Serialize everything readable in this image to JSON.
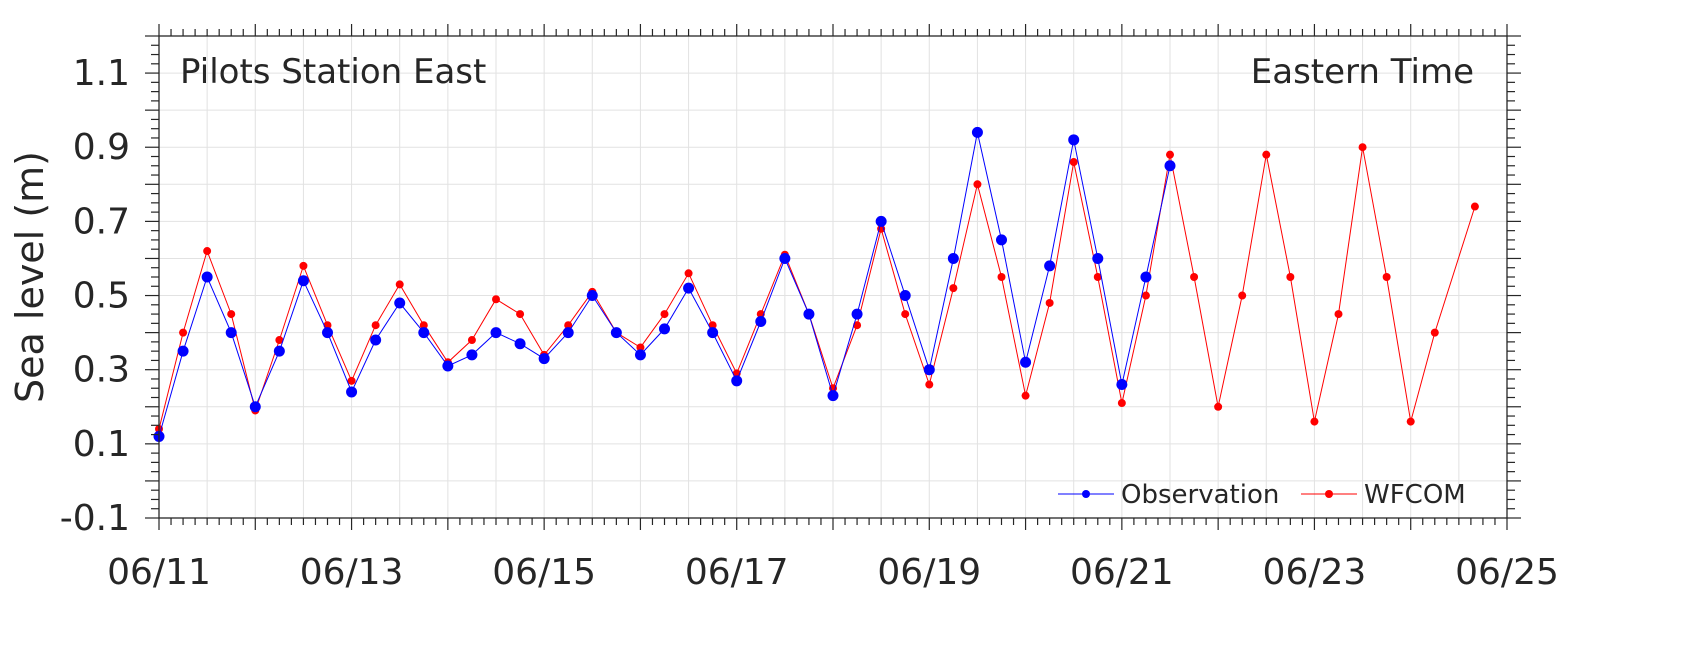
{
  "chart_data": {
    "type": "line",
    "title_left": "Pilots Station East",
    "title_right": "Eastern Time",
    "xlabel": "",
    "ylabel": "Sea level (m)",
    "x_unit": "days (June)",
    "xlim": [
      "06/11",
      "06/25"
    ],
    "ylim": [
      -0.1,
      1.2
    ],
    "x_ticks": [
      "06/11",
      "06/13",
      "06/15",
      "06/17",
      "06/19",
      "06/21",
      "06/23",
      "06/25"
    ],
    "y_ticks": [
      "-0.1",
      "0.1",
      "0.3",
      "0.5",
      "0.7",
      "0.9",
      "1.1"
    ],
    "grid": true,
    "legend_position": "bottom-right",
    "series": [
      {
        "name": "Observation",
        "color": "#0000ff",
        "marker": "circle",
        "x": [
          "06/11 00:00",
          "06/11 06:00",
          "06/11 12:00",
          "06/11 18:00",
          "06/12 00:00",
          "06/12 06:00",
          "06/12 12:00",
          "06/12 18:00",
          "06/13 00:00",
          "06/13 06:00",
          "06/13 12:00",
          "06/13 18:00",
          "06/14 00:00",
          "06/14 06:00",
          "06/14 12:00",
          "06/14 18:00",
          "06/15 00:00",
          "06/15 06:00",
          "06/15 12:00",
          "06/15 18:00",
          "06/16 00:00",
          "06/16 06:00",
          "06/16 12:00",
          "06/16 18:00",
          "06/17 00:00",
          "06/17 06:00",
          "06/17 12:00",
          "06/17 18:00",
          "06/18 00:00",
          "06/18 06:00",
          "06/18 12:00",
          "06/18 18:00",
          "06/19 00:00",
          "06/19 06:00",
          "06/19 12:00",
          "06/19 18:00",
          "06/20 00:00",
          "06/20 06:00",
          "06/20 12:00",
          "06/20 18:00",
          "06/21 00:00",
          "06/21 06:00",
          "06/21 12:00"
        ],
        "y": [
          0.12,
          0.35,
          0.55,
          0.4,
          0.2,
          0.35,
          0.54,
          0.4,
          0.24,
          0.38,
          0.48,
          0.4,
          0.31,
          0.34,
          0.4,
          0.37,
          0.33,
          0.4,
          0.5,
          0.4,
          0.34,
          0.41,
          0.52,
          0.4,
          0.27,
          0.43,
          0.6,
          0.45,
          0.23,
          0.45,
          0.7,
          0.5,
          0.3,
          0.6,
          0.94,
          0.65,
          0.32,
          0.58,
          0.92,
          0.6,
          0.26,
          0.55,
          0.85
        ]
      },
      {
        "name": "WFCOM",
        "color": "#ff0000",
        "marker": "circle",
        "x": [
          "06/11 00:00",
          "06/11 06:00",
          "06/11 12:00",
          "06/11 18:00",
          "06/12 00:00",
          "06/12 06:00",
          "06/12 12:00",
          "06/12 18:00",
          "06/13 00:00",
          "06/13 06:00",
          "06/13 12:00",
          "06/13 18:00",
          "06/14 00:00",
          "06/14 06:00",
          "06/14 12:00",
          "06/14 18:00",
          "06/15 00:00",
          "06/15 06:00",
          "06/15 12:00",
          "06/15 18:00",
          "06/16 00:00",
          "06/16 06:00",
          "06/16 12:00",
          "06/16 18:00",
          "06/17 00:00",
          "06/17 06:00",
          "06/17 12:00",
          "06/17 18:00",
          "06/18 00:00",
          "06/18 06:00",
          "06/18 12:00",
          "06/18 18:00",
          "06/19 00:00",
          "06/19 06:00",
          "06/19 12:00",
          "06/19 18:00",
          "06/20 00:00",
          "06/20 06:00",
          "06/20 12:00",
          "06/20 18:00",
          "06/21 00:00",
          "06/21 06:00",
          "06/21 12:00",
          "06/21 18:00",
          "06/22 00:00",
          "06/22 06:00",
          "06/22 12:00",
          "06/22 18:00",
          "06/23 00:00",
          "06/23 06:00",
          "06/23 12:00",
          "06/23 18:00",
          "06/24 00:00",
          "06/24 06:00",
          "06/24 16:00"
        ],
        "y": [
          0.14,
          0.4,
          0.62,
          0.45,
          0.19,
          0.38,
          0.58,
          0.42,
          0.27,
          0.42,
          0.53,
          0.42,
          0.32,
          0.38,
          0.49,
          0.45,
          0.34,
          0.42,
          0.51,
          0.4,
          0.36,
          0.45,
          0.56,
          0.42,
          0.29,
          0.45,
          0.61,
          0.45,
          0.25,
          0.42,
          0.68,
          0.45,
          0.26,
          0.52,
          0.8,
          0.55,
          0.23,
          0.48,
          0.86,
          0.55,
          0.21,
          0.5,
          0.88,
          0.55,
          0.2,
          0.5,
          0.88,
          0.55,
          0.16,
          0.45,
          0.9,
          0.55,
          0.16,
          0.4,
          0.74
        ]
      }
    ]
  }
}
